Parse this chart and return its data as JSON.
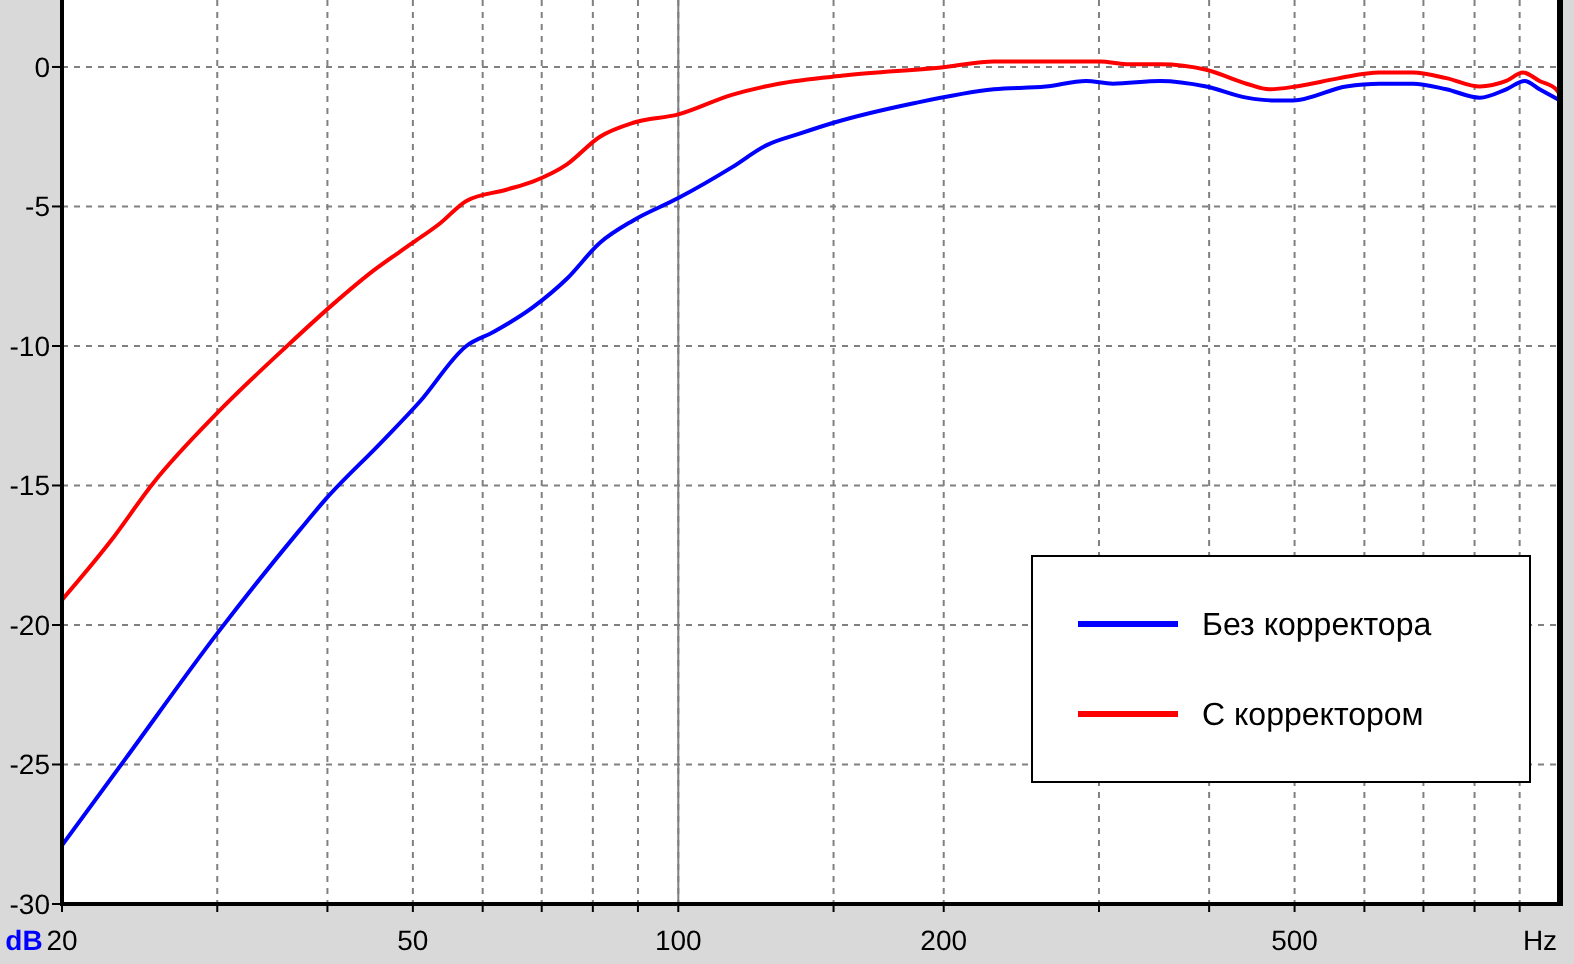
{
  "chart_data": {
    "type": "line",
    "xlabel": "Hz",
    "ylabel": "dB",
    "log": "x",
    "grid": true,
    "legend": "bottom right",
    "xlim": [
      20,
      1000
    ],
    "ylim": [
      -30,
      2.4
    ],
    "xticks": [
      20,
      {
        "value": 30,
        "label": null
      },
      {
        "value": 40,
        "label": null
      },
      50,
      {
        "value": 60,
        "label": null
      },
      {
        "value": 70,
        "label": null
      },
      {
        "value": 80,
        "label": null
      },
      {
        "value": 90,
        "label": null
      },
      100,
      {
        "value": 150,
        "label": null
      },
      200,
      {
        "value": 300,
        "label": null
      },
      {
        "value": 400,
        "label": null
      },
      500,
      {
        "value": 600,
        "label": null
      },
      {
        "value": 700,
        "label": null
      },
      {
        "value": 800,
        "label": null
      },
      {
        "value": 900,
        "label": null
      }
    ],
    "yticks": [
      -30,
      -25,
      -20,
      -15,
      -10,
      -5,
      0
    ],
    "ref_lines": [
      {
        "axis": "x",
        "value": 100,
        "color": "#808080",
        "line_style": "solid"
      }
    ],
    "series": [
      {
        "name": "Без корректора",
        "color": "#0000ff",
        "x": [
          20,
          23.6,
          30,
          37.2,
          39.8,
          45.9,
          50.9,
          57.5,
          61.7,
          68.5,
          74.7,
          81.5,
          88.9,
          100,
          115,
          126,
          137,
          150,
          185,
          228,
          261,
          290,
          311,
          352,
          397,
          441,
          473,
          498,
          572,
          624,
          681,
          743,
          811,
          869,
          912,
          948,
          1000
        ],
        "values": [
          -27.9,
          -24.8,
          -20.3,
          -16.6,
          -15.5,
          -13.5,
          -12.0,
          -10.0,
          -9.5,
          -8.6,
          -7.6,
          -6.3,
          -5.5,
          -4.7,
          -3.6,
          -2.8,
          -2.4,
          -2.0,
          -1.3,
          -0.8,
          -0.7,
          -0.5,
          -0.6,
          -0.5,
          -0.7,
          -1.1,
          -1.2,
          -1.2,
          -0.7,
          -0.6,
          -0.6,
          -0.8,
          -1.1,
          -0.8,
          -0.5,
          -0.8,
          -1.2
        ]
      },
      {
        "name": "С корректором",
        "color": "#ff0000",
        "x": [
          20,
          22.7,
          25.4,
          30,
          36,
          40.6,
          45.1,
          50,
          53.7,
          57.5,
          63.8,
          68.5,
          74.7,
          81.5,
          88.9,
          100,
          115,
          130,
          155,
          201,
          228,
          280,
          301,
          322,
          352,
          397,
          441,
          468,
          502,
          562,
          624,
          681,
          743,
          811,
          869,
          908,
          948,
          990,
          1000
        ],
        "values": [
          -19.1,
          -17.0,
          -14.9,
          -12.4,
          -10.0,
          -8.5,
          -7.3,
          -6.3,
          -5.6,
          -4.8,
          -4.4,
          -4.1,
          -3.5,
          -2.5,
          -2.0,
          -1.7,
          -1.0,
          -0.6,
          -0.3,
          0.0,
          0.2,
          0.2,
          0.2,
          0.1,
          0.1,
          -0.1,
          -0.6,
          -0.8,
          -0.7,
          -0.4,
          -0.2,
          -0.2,
          -0.4,
          -0.7,
          -0.5,
          -0.2,
          -0.5,
          -0.8,
          -1.0
        ]
      }
    ]
  }
}
